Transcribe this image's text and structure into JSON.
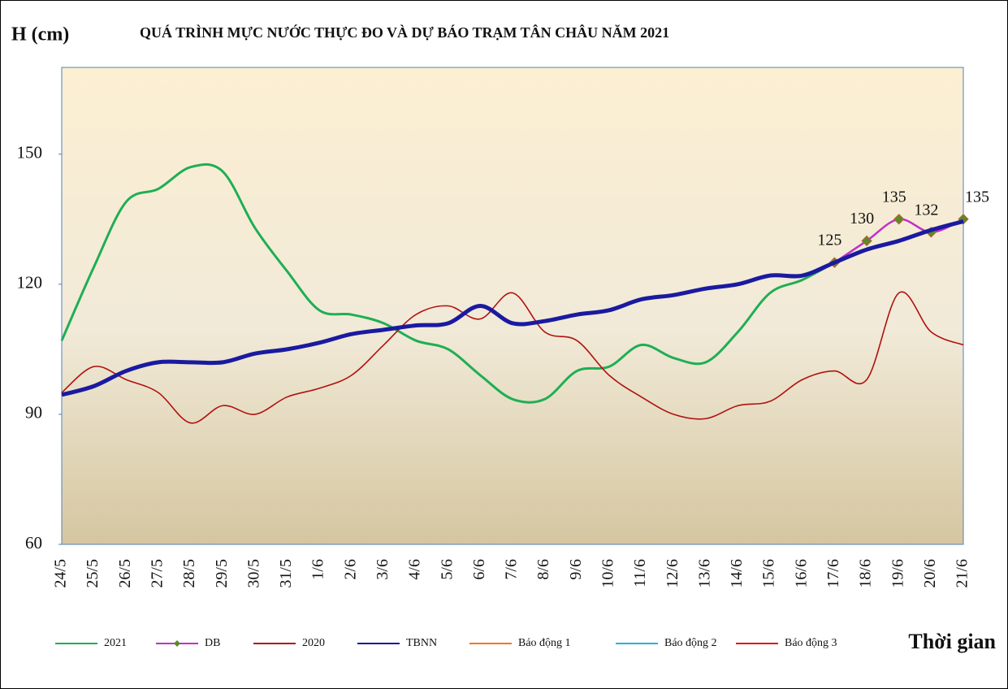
{
  "chart_data": {
    "type": "line",
    "title": "QUÁ TRÌNH MỰC NƯỚC THỰC ĐO VÀ DỰ BÁO TRẠM TÂN CHÂU NĂM 2021",
    "y_label": "H (cm)",
    "x_label": "Thời gian",
    "categories": [
      "24/5",
      "25/5",
      "26/5",
      "27/5",
      "28/5",
      "29/5",
      "30/5",
      "31/5",
      "1/6",
      "2/6",
      "3/6",
      "4/6",
      "5/6",
      "6/6",
      "7/6",
      "8/6",
      "9/6",
      "10/6",
      "11/6",
      "12/6",
      "13/6",
      "14/6",
      "15/6",
      "16/6",
      "17/6",
      "18/6",
      "19/6",
      "20/6",
      "21/6"
    ],
    "ylim": [
      60,
      170
    ],
    "yticks": [
      60,
      90,
      120,
      150
    ],
    "series": [
      {
        "name": "2021",
        "color": "#1fae55",
        "width": 3,
        "values": [
          107,
          124,
          139,
          142,
          147,
          146,
          133,
          123,
          114,
          113,
          111,
          107,
          105,
          99,
          93.5,
          93.5,
          100,
          101,
          106,
          103,
          102,
          109,
          118,
          121,
          125,
          null,
          null,
          null,
          null
        ]
      },
      {
        "name": "DB",
        "color": "#c030c8",
        "width": 2.5,
        "marker": "#5a8a2a",
        "values": [
          null,
          null,
          null,
          null,
          null,
          null,
          null,
          null,
          null,
          null,
          null,
          null,
          null,
          null,
          null,
          null,
          null,
          null,
          null,
          null,
          null,
          null,
          null,
          null,
          125,
          130,
          135,
          132,
          135
        ],
        "value_labels": [
          null,
          null,
          null,
          null,
          null,
          null,
          null,
          null,
          null,
          null,
          null,
          null,
          null,
          null,
          null,
          null,
          null,
          null,
          null,
          null,
          null,
          null,
          null,
          null,
          "125",
          "130",
          "135",
          "132",
          "135"
        ]
      },
      {
        "name": "2020",
        "color": "#b01010",
        "width": 1.6,
        "values": [
          95,
          101,
          98,
          95,
          88,
          92,
          90,
          94,
          96,
          99,
          106,
          113,
          115,
          112,
          118,
          109,
          107,
          99,
          94,
          90,
          89,
          92,
          93,
          98,
          100,
          98,
          118,
          109,
          106
        ]
      },
      {
        "name": "TBNN",
        "color": "#1a1aa0",
        "width": 5,
        "values": [
          94.5,
          96.5,
          100,
          102,
          102,
          102,
          104,
          105,
          106.5,
          108.5,
          109.5,
          110.5,
          111,
          115,
          111,
          111.5,
          113,
          114,
          116.5,
          117.5,
          119,
          120,
          122,
          122,
          125,
          128,
          130,
          132.5,
          134.5
        ]
      },
      {
        "name": "Báo động 1",
        "color": "#f07820",
        "width": 1.6
      },
      {
        "name": "Báo động 2",
        "color": "#20b0e8",
        "width": 1.6
      },
      {
        "name": "Báo động 3",
        "color": "#e01818",
        "width": 1.6
      }
    ]
  }
}
